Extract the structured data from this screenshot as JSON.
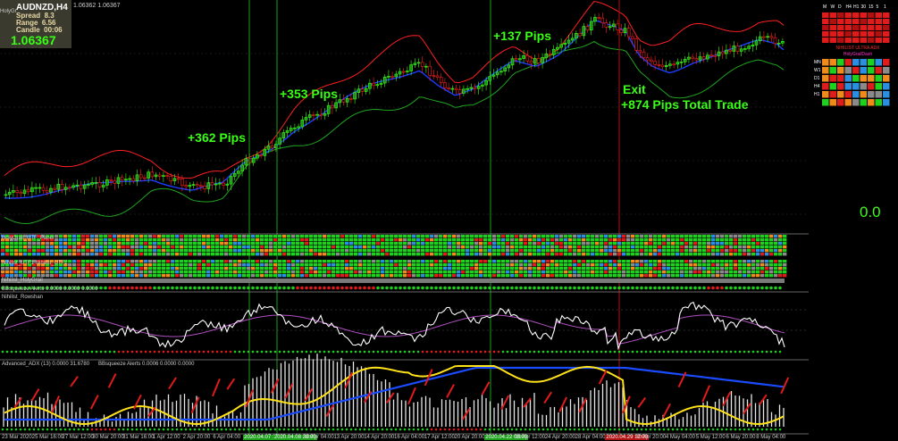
{
  "symbol": "AUDNZD,H4",
  "spread": {
    "label": "Spread",
    "value": "8.3"
  },
  "range": {
    "label": "Range",
    "value": "6.56"
  },
  "candle": {
    "label": "Candle",
    "value": "00:06"
  },
  "price": "1.06367",
  "ohlc_header": "1.06362 1.06367",
  "holy_label": "HolyGr",
  "zero_readout": "0.0",
  "annotations": {
    "pips1": "+362 Pips",
    "pips2": "+353 Pips",
    "pips3": "+137 Pips",
    "exit": "Exit",
    "total": "+874 Pips Total Trade"
  },
  "panels": {
    "p1": "HolyGrail_UTF_Panel",
    "p2": "Nihilist_UTF1  Nihilist_UTF2",
    "p3": "Nihilist_HolyGrail",
    "p4": "BBsqueeze Alerts 0.0006 0.0000 0.0000",
    "rsi": "Nihilist_Rowshan",
    "adx": "Advanced_ADX (13) 0.0000 31.6780",
    "adx2": "BBsqueeze Alerts 0.0006 0.0000 0.0000"
  },
  "xaxis": [
    {
      "t": "23 Mar 2020",
      "hl": ""
    },
    {
      "t": "25 Mar 16:00",
      "hl": ""
    },
    {
      "t": "27 Mar 12:00",
      "hl": ""
    },
    {
      "t": "30 Mar 20:00",
      "hl": ""
    },
    {
      "t": "31 Mar 16:00",
      "hl": ""
    },
    {
      "t": "1 Apr 12:00",
      "hl": ""
    },
    {
      "t": "2 Apr 20:00",
      "hl": ""
    },
    {
      "t": "6 Apr 04:00",
      "hl": ""
    },
    {
      "t": "2020.04.07 16:00",
      "hl": "g"
    },
    {
      "t": "2020.04.08 20:00",
      "hl": "g"
    },
    {
      "t": "10 Apr 04:00",
      "hl": ""
    },
    {
      "t": "13 Apr 20:00",
      "hl": ""
    },
    {
      "t": "14 Apr 20:00",
      "hl": ""
    },
    {
      "t": "16 Apr 04:00",
      "hl": ""
    },
    {
      "t": "17 Apr 12:00",
      "hl": ""
    },
    {
      "t": "20 Apr 20:00",
      "hl": ""
    },
    {
      "t": "2020.04.22 08:00",
      "hl": "g"
    },
    {
      "t": "23 Apr 12:00",
      "hl": ""
    },
    {
      "t": "24 Apr 20:00",
      "hl": ""
    },
    {
      "t": "28 Apr 04:00",
      "hl": ""
    },
    {
      "t": "2020.04.29 12:00",
      "hl": "r"
    },
    {
      "t": "30 Apr 20:00",
      "hl": ""
    },
    {
      "t": "4 May 04:00",
      "hl": ""
    },
    {
      "t": "5 May 12:00",
      "hl": ""
    },
    {
      "t": "6 May 20:00",
      "hl": ""
    },
    {
      "t": "8 May 04:00",
      "hl": ""
    }
  ],
  "legend": {
    "headers": [
      "M",
      "W",
      "D",
      "H4",
      "H1",
      "30",
      "15",
      "5",
      "1"
    ],
    "ultra": "NIHILIST ULTRA ADX",
    "holy": "HolyGrailDash",
    "rows": [
      "MN",
      "W1",
      "D1",
      "H4",
      "H1"
    ]
  },
  "colors": {
    "bull": "#39ff14",
    "bear": "#ff2020",
    "band_upper": "#ff2020",
    "band_lower": "#1fa51f",
    "ma": "#1e3cff",
    "vline_green": "#1c9c1c",
    "vline_red": "#b01010"
  }
}
